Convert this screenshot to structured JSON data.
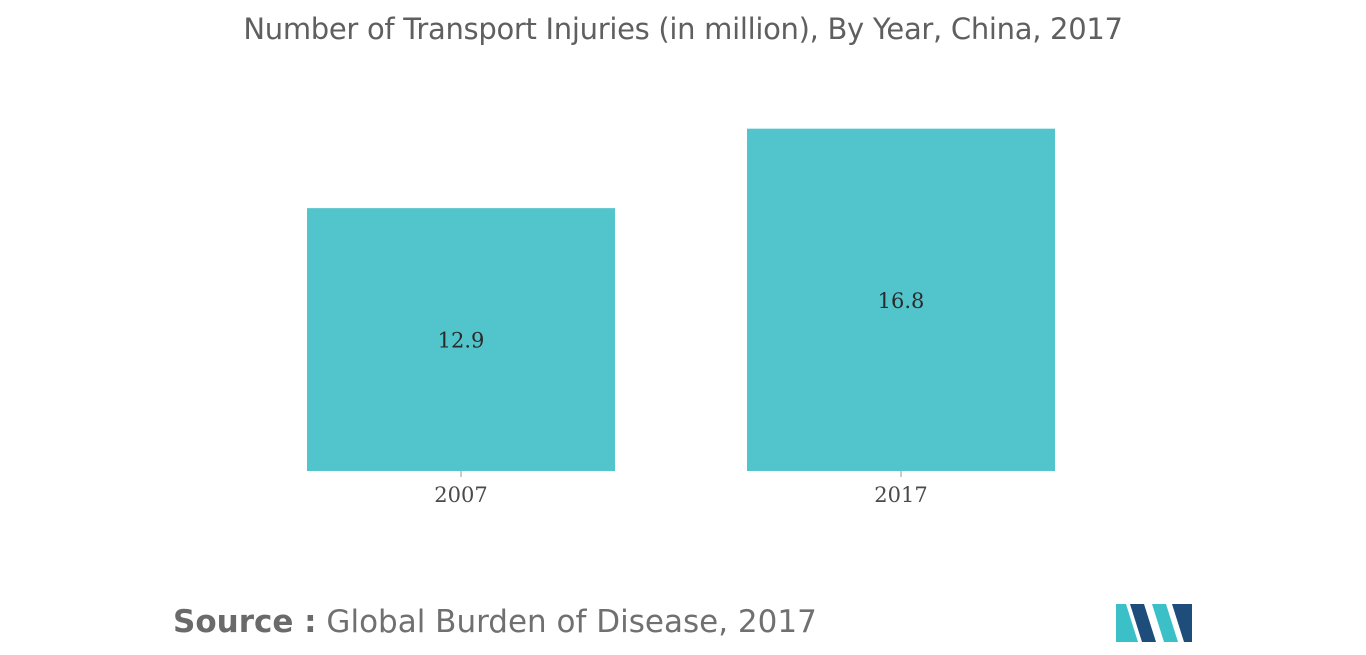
{
  "chart_data": {
    "type": "bar",
    "title": "Number of Transport Injuries (in million), By Year, China, 2017",
    "categories": [
      "2007",
      "2017"
    ],
    "values": [
      12.9,
      16.8
    ],
    "value_labels": [
      "12.9",
      "16.8"
    ],
    "xlabel": "",
    "ylabel": "",
    "ylim": [
      0,
      18.6
    ],
    "grid": false,
    "legend": "none",
    "bar_color": "#52c4cb"
  },
  "source": {
    "label": "Source :",
    "text": " Global Burden of Disease, 2017"
  },
  "colors": {
    "logo_dark": "#1e4d7b",
    "logo_light": "#3cc0c8"
  }
}
